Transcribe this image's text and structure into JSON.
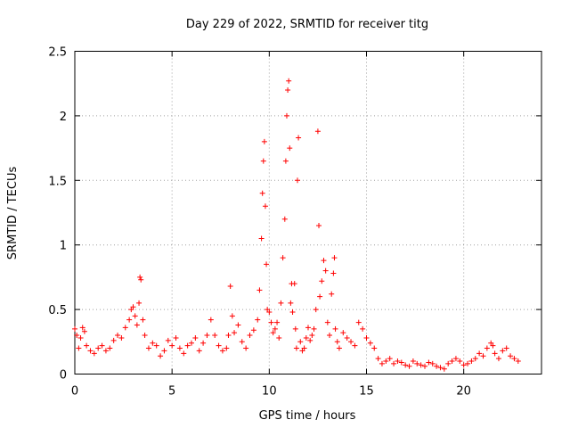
{
  "chart_data": {
    "type": "scatter",
    "title": "Day 229 of 2022, SRMTID for receiver titg",
    "xlabel": "GPS time / hours",
    "ylabel": "SRMTID / TECUs",
    "xlim": [
      0,
      24
    ],
    "ylim": [
      0,
      2.5
    ],
    "x_ticks": [
      0,
      5,
      10,
      15,
      20
    ],
    "x_tick_labels": [
      "0",
      "5",
      "10",
      "15",
      "20"
    ],
    "y_ticks": [
      0,
      0.5,
      1,
      1.5,
      2,
      2.5
    ],
    "y_tick_labels": [
      "0",
      "0.5",
      "1",
      "1.5",
      "2",
      "2.5"
    ],
    "grid": true,
    "marker": "plus",
    "color": "#ff0000",
    "series": [
      {
        "name": "SRMTID",
        "x": [
          0.0,
          0.1,
          0.2,
          0.3,
          0.4,
          0.5,
          0.6,
          0.8,
          1.0,
          1.2,
          1.4,
          1.6,
          1.8,
          2.0,
          2.2,
          2.4,
          2.6,
          2.8,
          2.9,
          3.0,
          3.1,
          3.2,
          3.3,
          3.35,
          3.4,
          3.5,
          3.6,
          3.8,
          4.0,
          4.2,
          4.4,
          4.6,
          4.8,
          5.0,
          5.2,
          5.4,
          5.6,
          5.8,
          6.0,
          6.2,
          6.4,
          6.6,
          6.8,
          7.0,
          7.2,
          7.4,
          7.6,
          7.8,
          7.9,
          8.0,
          8.1,
          8.2,
          8.4,
          8.6,
          8.8,
          9.0,
          9.2,
          9.4,
          9.5,
          9.6,
          9.65,
          9.7,
          9.75,
          9.8,
          9.85,
          9.9,
          10.0,
          10.1,
          10.2,
          10.3,
          10.4,
          10.5,
          10.6,
          10.7,
          10.8,
          10.85,
          10.9,
          10.95,
          11.0,
          11.05,
          11.1,
          11.15,
          11.2,
          11.3,
          11.35,
          11.4,
          11.45,
          11.5,
          11.6,
          11.7,
          11.8,
          11.9,
          12.0,
          12.1,
          12.2,
          12.3,
          12.4,
          12.5,
          12.55,
          12.6,
          12.7,
          12.8,
          12.9,
          13.0,
          13.1,
          13.2,
          13.3,
          13.35,
          13.4,
          13.5,
          13.6,
          13.8,
          14.0,
          14.2,
          14.4,
          14.6,
          14.8,
          15.0,
          15.2,
          15.4,
          15.6,
          15.8,
          16.0,
          16.2,
          16.4,
          16.6,
          16.8,
          17.0,
          17.2,
          17.4,
          17.6,
          17.8,
          18.0,
          18.2,
          18.4,
          18.6,
          18.8,
          19.0,
          19.2,
          19.4,
          19.6,
          19.8,
          20.0,
          20.2,
          20.4,
          20.6,
          20.8,
          21.0,
          21.2,
          21.4,
          21.5,
          21.6,
          21.8,
          22.0,
          22.2,
          22.4,
          22.6,
          22.8
        ],
        "y": [
          0.35,
          0.3,
          0.2,
          0.28,
          0.36,
          0.33,
          0.22,
          0.18,
          0.16,
          0.2,
          0.22,
          0.18,
          0.2,
          0.26,
          0.3,
          0.28,
          0.36,
          0.42,
          0.5,
          0.52,
          0.45,
          0.38,
          0.55,
          0.75,
          0.73,
          0.42,
          0.3,
          0.2,
          0.24,
          0.22,
          0.14,
          0.18,
          0.26,
          0.22,
          0.28,
          0.2,
          0.16,
          0.22,
          0.24,
          0.28,
          0.18,
          0.24,
          0.3,
          0.42,
          0.3,
          0.22,
          0.18,
          0.2,
          0.3,
          0.68,
          0.45,
          0.32,
          0.38,
          0.25,
          0.2,
          0.3,
          0.34,
          0.42,
          0.65,
          1.05,
          1.4,
          1.65,
          1.8,
          1.3,
          0.85,
          0.5,
          0.48,
          0.4,
          0.32,
          0.35,
          0.4,
          0.28,
          0.55,
          0.9,
          1.2,
          1.65,
          2.0,
          2.2,
          2.27,
          1.75,
          0.55,
          0.7,
          0.48,
          0.7,
          0.35,
          0.2,
          1.5,
          1.83,
          0.25,
          0.18,
          0.2,
          0.28,
          0.36,
          0.26,
          0.3,
          0.35,
          0.5,
          1.88,
          1.15,
          0.6,
          0.72,
          0.88,
          0.8,
          0.4,
          0.3,
          0.62,
          0.78,
          0.9,
          0.35,
          0.25,
          0.2,
          0.32,
          0.28,
          0.25,
          0.22,
          0.4,
          0.35,
          0.28,
          0.24,
          0.2,
          0.12,
          0.08,
          0.1,
          0.12,
          0.08,
          0.1,
          0.09,
          0.07,
          0.06,
          0.1,
          0.08,
          0.07,
          0.06,
          0.09,
          0.08,
          0.06,
          0.05,
          0.04,
          0.08,
          0.1,
          0.12,
          0.1,
          0.07,
          0.08,
          0.1,
          0.12,
          0.16,
          0.14,
          0.2,
          0.24,
          0.22,
          0.16,
          0.12,
          0.18,
          0.2,
          0.14,
          0.12,
          0.1
        ]
      }
    ]
  }
}
